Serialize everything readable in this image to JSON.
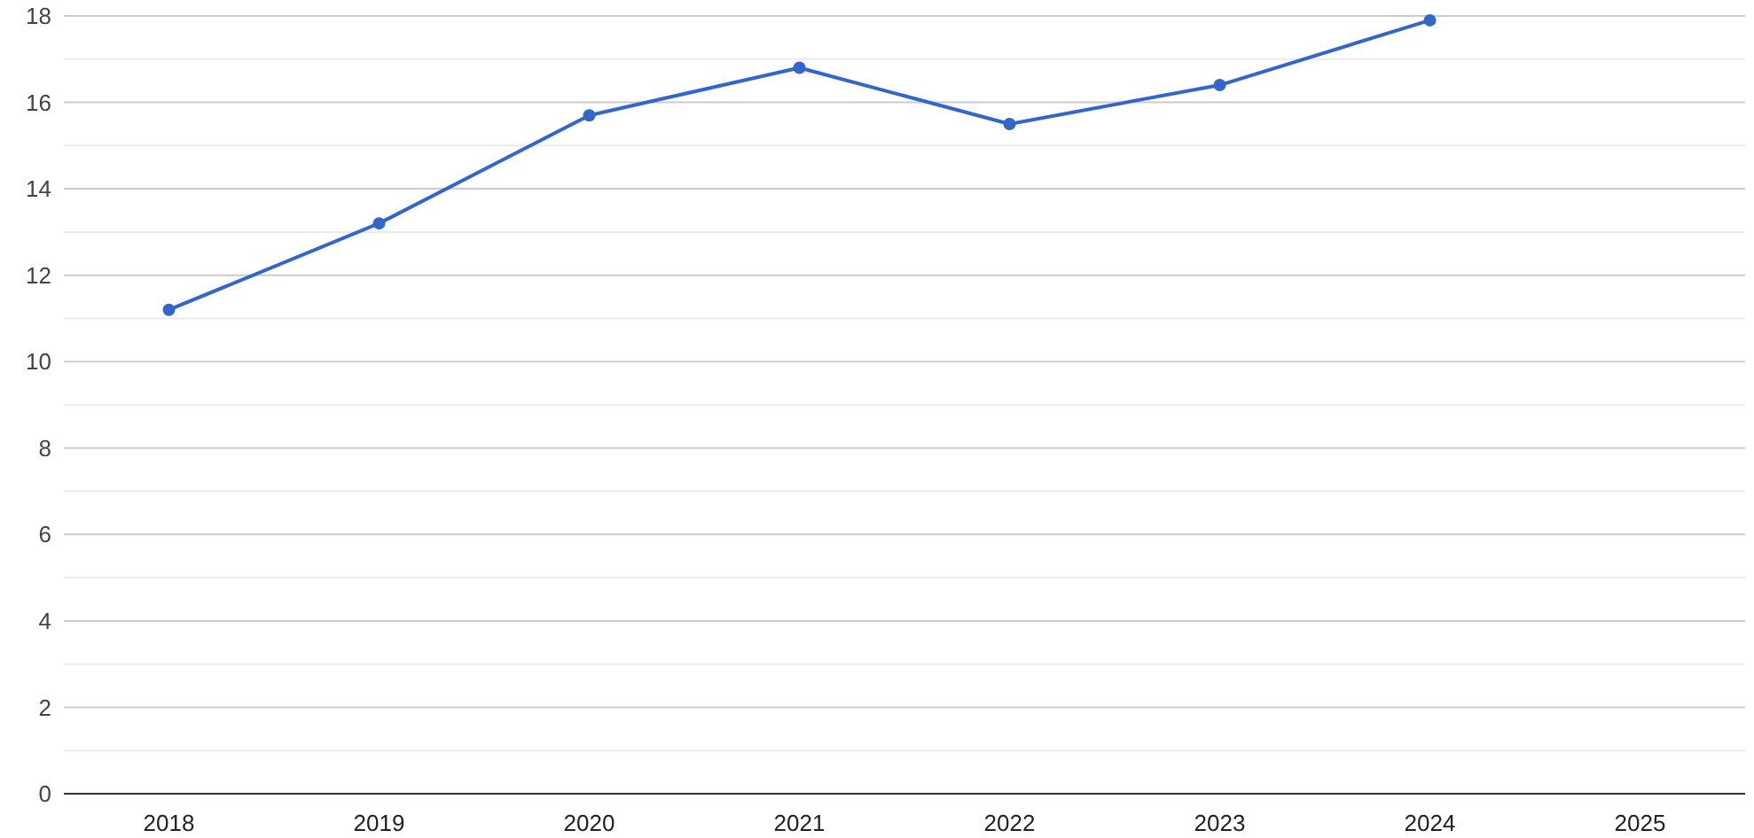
{
  "chart_data": {
    "type": "line",
    "categories": [
      "2018",
      "2019",
      "2020",
      "2021",
      "2022",
      "2023",
      "2024",
      "2025"
    ],
    "series": [
      {
        "color": "#3366cc",
        "values": [
          11.2,
          13.2,
          15.7,
          16.8,
          15.5,
          16.4,
          17.9,
          null
        ]
      }
    ],
    "ylim": [
      0,
      18
    ],
    "yticks": [
      0,
      {
        "value": 1,
        "label": null
      },
      2,
      {
        "value": 3,
        "label": null
      },
      4,
      {
        "value": 5,
        "label": null
      },
      6,
      {
        "value": 7,
        "label": null
      },
      8,
      {
        "value": 9,
        "label": null
      },
      10,
      {
        "value": 11,
        "label": null
      },
      12,
      {
        "value": 13,
        "label": null
      },
      14,
      {
        "value": 15,
        "label": null
      },
      16,
      {
        "value": 17,
        "label": null
      },
      18
    ],
    "grid": "y",
    "marker": "circle",
    "line_style": "solid"
  }
}
